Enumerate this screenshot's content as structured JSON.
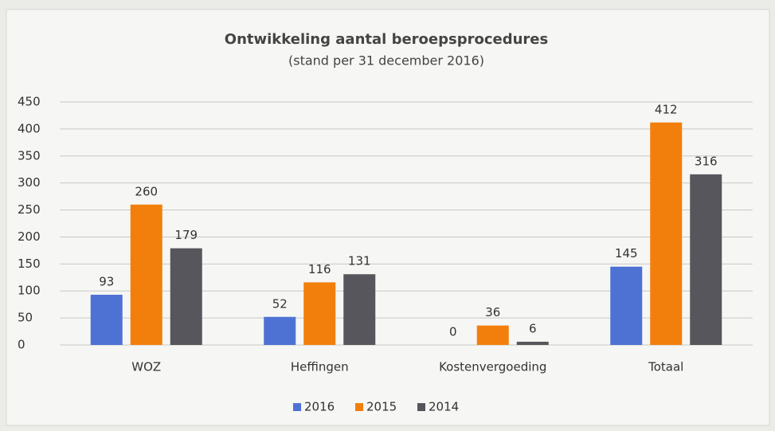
{
  "chart_data": {
    "type": "bar",
    "title": "Ontwikkeling aantal beroepsprocedures",
    "subtitle": "(stand per 31 december 2016)",
    "categories": [
      "WOZ",
      "Heffingen",
      "Kostenvergoeding",
      "Totaal"
    ],
    "series": [
      {
        "name": "2016",
        "color": "#4e72d4",
        "values": [
          93,
          52,
          0,
          145
        ]
      },
      {
        "name": "2015",
        "color": "#f27f0c",
        "values": [
          260,
          116,
          36,
          412
        ]
      },
      {
        "name": "2014",
        "color": "#56565c",
        "values": [
          179,
          131,
          6,
          316
        ]
      }
    ],
    "ylim": [
      0,
      450
    ],
    "yticks": [
      0,
      50,
      100,
      150,
      200,
      250,
      300,
      350,
      400,
      450
    ],
    "grid": true,
    "legend": "bottom",
    "data_labels": true
  }
}
